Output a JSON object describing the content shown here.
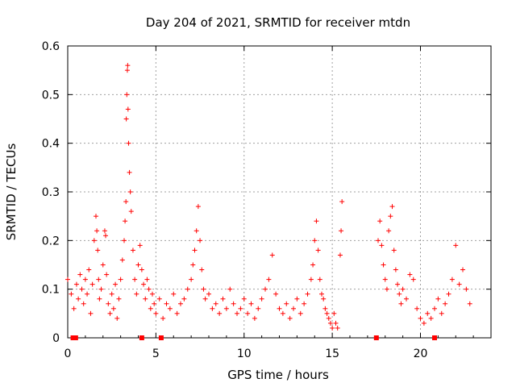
{
  "chart_data": {
    "type": "scatter",
    "title": "Day 204 of 2021, SRMTID for receiver mtdn",
    "xlabel": "GPS time / hours",
    "ylabel": "SRMTID / TECUs",
    "xlim": [
      0,
      24
    ],
    "ylim": [
      0,
      0.6
    ],
    "xticks": [
      0,
      5,
      10,
      15,
      20
    ],
    "xtick_labels": [
      "0",
      "5",
      "10",
      "15",
      "20"
    ],
    "yticks": [
      0,
      0.1,
      0.2,
      0.3,
      0.4,
      0.5,
      0.6
    ],
    "ytick_labels": [
      "0",
      "0.1",
      "0.2",
      "0.3",
      "0.4",
      "0.5",
      "0.6"
    ],
    "grid": true,
    "marker": "+",
    "color": "#ff0000",
    "series": [
      {
        "name": "SRMTID",
        "x": [
          0.0,
          0.2,
          0.35,
          0.5,
          0.6,
          0.7,
          0.8,
          0.9,
          1.0,
          1.1,
          1.2,
          1.3,
          1.4,
          1.5,
          1.6,
          1.65,
          1.7,
          1.75,
          1.8,
          1.9,
          2.0,
          2.1,
          2.15,
          2.2,
          2.3,
          2.4,
          2.5,
          2.6,
          2.7,
          2.8,
          2.9,
          3.0,
          3.1,
          3.2,
          3.25,
          3.3,
          3.32,
          3.35,
          3.38,
          3.4,
          3.42,
          3.45,
          3.5,
          3.55,
          3.6,
          3.7,
          3.8,
          3.9,
          4.0,
          4.1,
          4.2,
          4.3,
          4.4,
          4.5,
          4.6,
          4.7,
          4.8,
          4.9,
          5.0,
          5.2,
          5.4,
          5.6,
          5.8,
          6.0,
          6.2,
          6.4,
          6.6,
          6.8,
          7.0,
          7.1,
          7.2,
          7.3,
          7.4,
          7.5,
          7.6,
          7.7,
          7.8,
          8.0,
          8.2,
          8.4,
          8.6,
          8.8,
          9.0,
          9.2,
          9.4,
          9.6,
          9.8,
          10.0,
          10.2,
          10.4,
          10.6,
          10.8,
          11.0,
          11.2,
          11.4,
          11.6,
          11.8,
          12.0,
          12.2,
          12.4,
          12.6,
          12.8,
          13.0,
          13.2,
          13.4,
          13.6,
          13.8,
          13.9,
          14.0,
          14.1,
          14.2,
          14.3,
          14.4,
          14.5,
          14.6,
          14.7,
          14.8,
          14.9,
          15.0,
          15.1,
          15.2,
          15.3,
          15.45,
          15.5,
          15.55,
          17.6,
          17.7,
          17.8,
          17.9,
          18.0,
          18.1,
          18.2,
          18.3,
          18.4,
          18.5,
          18.6,
          18.7,
          18.8,
          18.9,
          19.0,
          19.2,
          19.4,
          19.6,
          19.8,
          20.0,
          20.2,
          20.4,
          20.6,
          20.8,
          21.0,
          21.2,
          21.4,
          21.6,
          21.8,
          22.0,
          22.2,
          22.4,
          22.6,
          22.8
        ],
        "y": [
          0.12,
          0.09,
          0.06,
          0.11,
          0.08,
          0.13,
          0.1,
          0.07,
          0.12,
          0.09,
          0.14,
          0.05,
          0.11,
          0.2,
          0.25,
          0.22,
          0.18,
          0.12,
          0.08,
          0.1,
          0.15,
          0.22,
          0.21,
          0.13,
          0.07,
          0.05,
          0.09,
          0.06,
          0.11,
          0.04,
          0.08,
          0.12,
          0.16,
          0.2,
          0.24,
          0.28,
          0.45,
          0.5,
          0.55,
          0.56,
          0.47,
          0.4,
          0.34,
          0.3,
          0.26,
          0.18,
          0.12,
          0.09,
          0.15,
          0.19,
          0.14,
          0.11,
          0.08,
          0.12,
          0.1,
          0.06,
          0.09,
          0.07,
          0.05,
          0.08,
          0.04,
          0.07,
          0.06,
          0.09,
          0.05,
          0.07,
          0.08,
          0.1,
          0.12,
          0.15,
          0.18,
          0.22,
          0.27,
          0.2,
          0.14,
          0.1,
          0.08,
          0.09,
          0.06,
          0.07,
          0.05,
          0.08,
          0.06,
          0.1,
          0.07,
          0.05,
          0.06,
          0.08,
          0.05,
          0.07,
          0.04,
          0.06,
          0.08,
          0.1,
          0.12,
          0.17,
          0.09,
          0.06,
          0.05,
          0.07,
          0.04,
          0.06,
          0.08,
          0.05,
          0.07,
          0.09,
          0.12,
          0.15,
          0.2,
          0.24,
          0.18,
          0.12,
          0.09,
          0.08,
          0.06,
          0.05,
          0.04,
          0.03,
          0.02,
          0.05,
          0.03,
          0.02,
          0.17,
          0.22,
          0.28,
          0.2,
          0.24,
          0.19,
          0.15,
          0.12,
          0.1,
          0.22,
          0.25,
          0.27,
          0.18,
          0.14,
          0.11,
          0.09,
          0.07,
          0.1,
          0.08,
          0.13,
          0.12,
          0.06,
          0.04,
          0.03,
          0.05,
          0.04,
          0.06,
          0.08,
          0.05,
          0.07,
          0.09,
          0.12,
          0.19,
          0.11,
          0.14,
          0.1,
          0.07
        ]
      }
    ],
    "gap_markers": {
      "name": "data gaps",
      "x": [
        0.3,
        0.45,
        4.2,
        5.3,
        17.5,
        20.8
      ],
      "y": [
        0,
        0,
        0,
        0,
        0,
        0
      ]
    }
  }
}
